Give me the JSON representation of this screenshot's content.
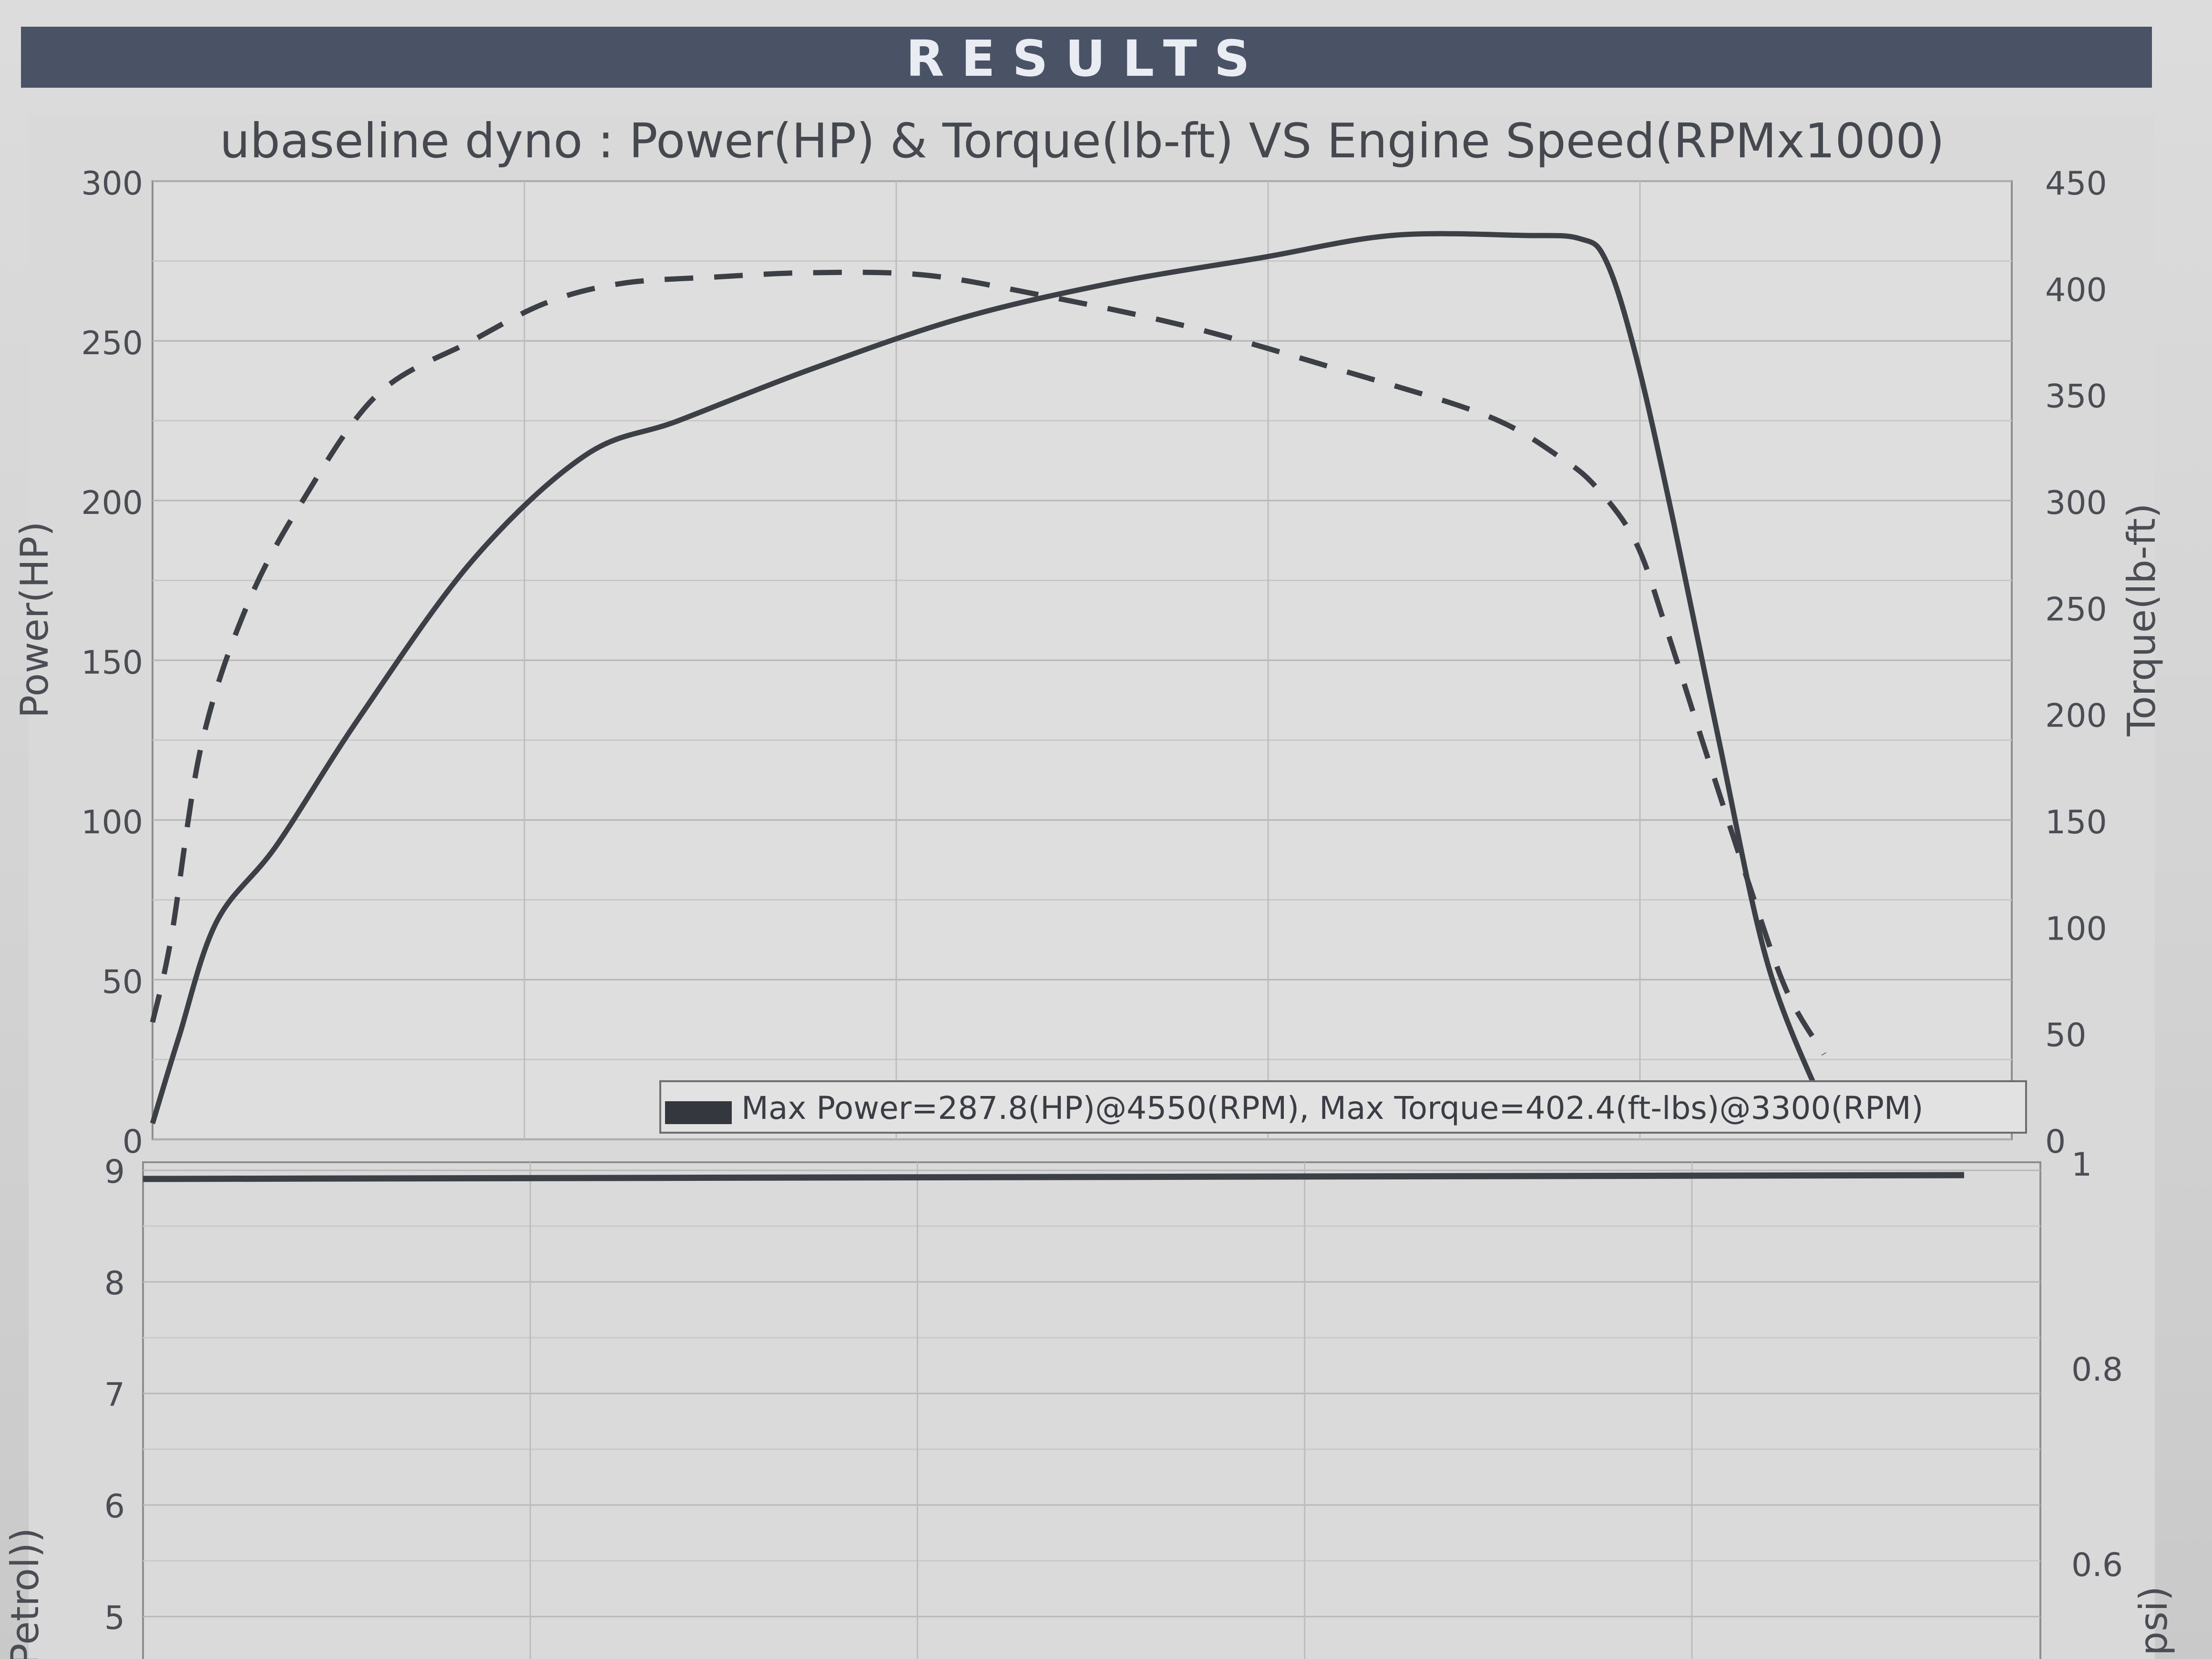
{
  "banner": {
    "title": "RESULTS"
  },
  "chart_data": [
    {
      "type": "line",
      "title": "ubaseline dyno : Power(HP) & Torque(lb-ft) VS Engine Speed(RPMx1000)",
      "ylabel": "Power(HP)",
      "y2label": "Torque(lb-ft)",
      "ylim": [
        0,
        300
      ],
      "y2lim": [
        0,
        450
      ],
      "yticks": [
        "0",
        "50",
        "100",
        "150",
        "200",
        "250",
        "300"
      ],
      "y2ticks": [
        "0",
        "50",
        "100",
        "150",
        "200",
        "250",
        "300",
        "350",
        "400",
        "450"
      ],
      "xlim": [
        1.25,
        6.2
      ],
      "grid": true,
      "legend": {
        "text": "Max Power=287.8(HP)@4550(RPM), Max Torque=402.4(ft-lbs)@3300(RPM)",
        "placement": "bottom-right"
      },
      "series": [
        {
          "axis": "left",
          "style": "solid",
          "color": "#3c3f46",
          "x": [
            1.25,
            1.32,
            1.42,
            1.58,
            1.8,
            2.1,
            2.4,
            2.65,
            3.0,
            3.4,
            3.8,
            4.2,
            4.55,
            4.9,
            5.05,
            5.12,
            5.2,
            5.3,
            5.42,
            5.55,
            5.7
          ],
          "y": [
            5,
            32,
            68,
            92,
            132,
            181,
            214,
            225,
            241,
            257,
            268,
            276,
            283,
            283,
            282,
            275,
            245,
            193,
            125,
            55,
            10
          ]
        },
        {
          "axis": "right",
          "style": "dashed",
          "color": "#3c3f46",
          "x": [
            1.25,
            1.3,
            1.38,
            1.5,
            1.65,
            1.85,
            2.1,
            2.3,
            2.5,
            2.75,
            3.0,
            3.3,
            3.6,
            4.0,
            4.4,
            4.8,
            5.0,
            5.1,
            5.2,
            5.28,
            5.38,
            5.5,
            5.6,
            5.7
          ],
          "y": [
            55,
            95,
            185,
            250,
            300,
            350,
            375,
            393,
            402,
            405,
            407,
            406,
            397,
            382,
            362,
            340,
            320,
            305,
            280,
            240,
            185,
            120,
            70,
            40
          ]
        }
      ]
    },
    {
      "type": "line",
      "ylabel": "Petrol))",
      "y2label": "psi)",
      "yticks": [
        "9",
        "8",
        "7",
        "6",
        "5"
      ],
      "y2ticks": [
        "1",
        "0.8",
        "0.6"
      ],
      "grid": true,
      "series": [
        {
          "style": "solid",
          "color": "#3c3f46",
          "x": [
            1.25,
            5.7
          ],
          "y": [
            8.98,
            8.98
          ]
        }
      ]
    }
  ]
}
